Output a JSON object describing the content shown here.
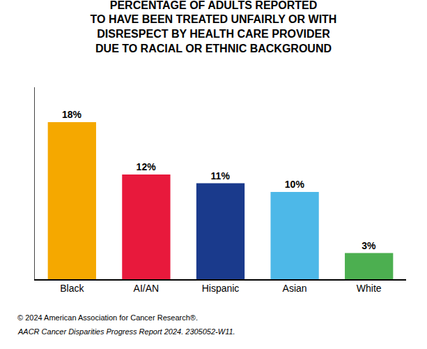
{
  "chart_data": {
    "type": "bar",
    "title": "PERCENTAGE OF ADULTS REPORTED\nTO HAVE BEEN TREATED UNFAIRLY OR WITH\nDISRESPECT BY HEALTH CARE PROVIDER\nDUE TO RACIAL OR ETHNIC BACKGROUND",
    "categories": [
      "Black",
      "AI/AN",
      "Hispanic",
      "Asian",
      "White"
    ],
    "values": [
      18,
      12,
      11,
      10,
      3
    ],
    "value_labels": [
      "18%",
      "12%",
      "11%",
      "10%",
      "3%"
    ],
    "data_labels": true,
    "colors": [
      "#F5A800",
      "#E8193C",
      "#1A3A8C",
      "#4DB8E8",
      "#4CAF50"
    ],
    "ylim": [
      0,
      22
    ],
    "tick_labels": "x",
    "grid": false,
    "annotations": [
      "© 2024 American Association for Cancer Research®.",
      "AACR Cancer Disparities Progress Report 2024. 2305052-W11."
    ]
  }
}
